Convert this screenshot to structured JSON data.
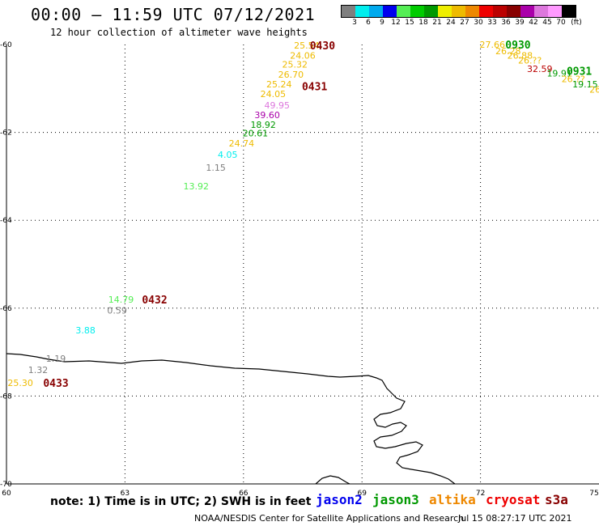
{
  "header": {
    "title": "00:00 – 11:59 UTC 07/12/2021",
    "subtitle": "12 hour collection of altimeter wave heights"
  },
  "legend": {
    "unit": "(ft)",
    "bins": [
      {
        "label": "3",
        "color": "#7f7f7f"
      },
      {
        "label": "6",
        "color": "#00eeee"
      },
      {
        "label": "9",
        "color": "#00aaee"
      },
      {
        "label": "12",
        "color": "#0000ee"
      },
      {
        "label": "15",
        "color": "#55ee55"
      },
      {
        "label": "18",
        "color": "#00cc00"
      },
      {
        "label": "21",
        "color": "#009900"
      },
      {
        "label": "24",
        "color": "#eeee00"
      },
      {
        "label": "27",
        "color": "#eebb00"
      },
      {
        "label": "30",
        "color": "#ee8800"
      },
      {
        "label": "33",
        "color": "#ee0000"
      },
      {
        "label": "36",
        "color": "#bb0000"
      },
      {
        "label": "39",
        "color": "#880000"
      },
      {
        "label": "42",
        "color": "#aa00aa"
      },
      {
        "label": "45",
        "color": "#dd77dd"
      },
      {
        "label": "70",
        "color": "#ff99ff"
      },
      {
        "label": "",
        "color": "#000000"
      }
    ]
  },
  "axes": {
    "x_ticks": [
      {
        "value": 60,
        "label": "60"
      },
      {
        "value": 63,
        "label": "63"
      },
      {
        "value": 66,
        "label": "66"
      },
      {
        "value": 69,
        "label": "69"
      },
      {
        "value": 72,
        "label": "72"
      },
      {
        "value": 75,
        "label": "75"
      }
    ],
    "y_ticks": [
      {
        "value": -60,
        "label": "-60"
      },
      {
        "value": -62,
        "label": "-62"
      },
      {
        "value": -64,
        "label": "-64"
      },
      {
        "value": -66,
        "label": "-66"
      },
      {
        "value": -68,
        "label": "-68"
      },
      {
        "value": -70,
        "label": "-70"
      }
    ]
  },
  "observations": [
    {
      "lon": 67.6,
      "lat": -60.02,
      "text": "25.54",
      "color": "#eebb00"
    },
    {
      "lon": 67.5,
      "lat": -60.25,
      "text": "24.06",
      "color": "#eebb00"
    },
    {
      "lon": 67.3,
      "lat": -60.45,
      "text": "25.32",
      "color": "#eebb00"
    },
    {
      "lon": 67.2,
      "lat": -60.68,
      "text": "26.70",
      "color": "#eebb00"
    },
    {
      "lon": 66.9,
      "lat": -60.9,
      "text": "25.24",
      "color": "#eebb00"
    },
    {
      "lon": 66.75,
      "lat": -61.12,
      "text": "24.05",
      "color": "#eebb00"
    },
    {
      "lon": 66.85,
      "lat": -61.38,
      "text": "49.95",
      "color": "#dd77dd"
    },
    {
      "lon": 66.6,
      "lat": -61.6,
      "text": "39.60",
      "color": "#aa00aa"
    },
    {
      "lon": 66.5,
      "lat": -61.82,
      "text": "18.92",
      "color": "#009900"
    },
    {
      "lon": 66.3,
      "lat": -62.02,
      "text": "20.61",
      "color": "#009900"
    },
    {
      "lon": 65.95,
      "lat": -62.25,
      "text": "24.74",
      "color": "#eebb00"
    },
    {
      "lon": 65.6,
      "lat": -62.5,
      "text": "4.05",
      "color": "#00eeee"
    },
    {
      "lon": 65.3,
      "lat": -62.8,
      "text": "1.15",
      "color": "#7f7f7f"
    },
    {
      "lon": 64.8,
      "lat": -63.22,
      "text": "13.92",
      "color": "#55ee55"
    },
    {
      "lon": 62.9,
      "lat": -65.8,
      "text": "14.79",
      "color": "#55ee55"
    },
    {
      "lon": 62.8,
      "lat": -66.05,
      "text": "0.59",
      "color": "#7f7f7f"
    },
    {
      "lon": 62.0,
      "lat": -66.5,
      "text": "3.88",
      "color": "#00eeee"
    },
    {
      "lon": 61.25,
      "lat": -67.15,
      "text": "1.19",
      "color": "#7f7f7f"
    },
    {
      "lon": 60.8,
      "lat": -67.4,
      "text": "1.32",
      "color": "#7f7f7f"
    },
    {
      "lon": 60.35,
      "lat": -67.7,
      "text": "25.30",
      "color": "#eebb00"
    },
    {
      "lon": 72.3,
      "lat": -60.0,
      "text": "27.66",
      "color": "#eebb00"
    },
    {
      "lon": 72.7,
      "lat": -60.15,
      "text": "26.28",
      "color": "#eebb00"
    },
    {
      "lon": 73.0,
      "lat": -60.25,
      "text": "26.88",
      "color": "#eebb00"
    },
    {
      "lon": 73.25,
      "lat": -60.36,
      "text": "26.??",
      "color": "#eebb00"
    },
    {
      "lon": 73.5,
      "lat": -60.55,
      "text": "32.59",
      "color": "#bb0000"
    },
    {
      "lon": 74.0,
      "lat": -60.65,
      "text": "19.91",
      "color": "#009900"
    },
    {
      "lon": 74.35,
      "lat": -60.78,
      "text": "26.??",
      "color": "#eebb00"
    },
    {
      "lon": 74.65,
      "lat": -60.9,
      "text": "19.15",
      "color": "#009900"
    },
    {
      "lon": 74.9,
      "lat": -61.02,
      "text": "26",
      "color": "#eebb00"
    }
  ],
  "time_labels": [
    {
      "lon": 68.0,
      "lat": -60.02,
      "text": "0430",
      "color": "#880000"
    },
    {
      "lon": 67.8,
      "lat": -60.95,
      "text": "0431",
      "color": "#880000"
    },
    {
      "lon": 63.75,
      "lat": -65.8,
      "text": "0432",
      "color": "#880000"
    },
    {
      "lon": 61.25,
      "lat": -67.7,
      "text": "0433",
      "color": "#880000"
    },
    {
      "lon": 72.95,
      "lat": -60.0,
      "text": "0930",
      "color": "#009900"
    },
    {
      "lon": 74.5,
      "lat": -60.6,
      "text": "0931",
      "color": "#009900"
    }
  ],
  "footer": {
    "note": "note: 1) Time is in UTC; 2) SWH is in feet",
    "satellites": [
      {
        "name": "jason2",
        "color": "#0000ee"
      },
      {
        "name": "jason3",
        "color": "#009900"
      },
      {
        "name": "altika",
        "color": "#ee8800"
      },
      {
        "name": "cryosat",
        "color": "#ee0000"
      },
      {
        "name": "s3a",
        "color": "#880000"
      }
    ],
    "credit": "NOAA/NESDIS Center for Satellite Applications and Research",
    "timestamp": "Jul 15 08:27:17 UTC 2021"
  }
}
